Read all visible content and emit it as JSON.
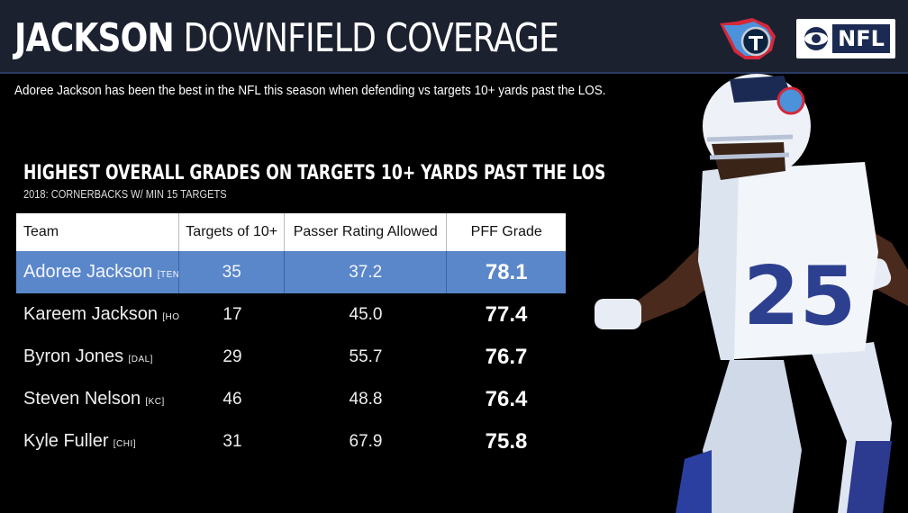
{
  "header": {
    "title_bold": "JACKSON",
    "title_light": "DOWNFIELD COVERAGE",
    "network_logo_text": "NFL"
  },
  "subtitle": "Adoree Jackson has been the best in the NFL this season when defending vs targets 10+ yards past the LOS.",
  "table": {
    "title": "HIGHEST OVERALL GRADES ON TARGETS 10+ YARDS PAST THE LOS",
    "subtitle": "2018: CORNERBACKS W/ MIN 15 TARGETS",
    "headers": [
      "Team",
      "Targets of 10+",
      "Passer Rating Allowed",
      "PFF Grade"
    ],
    "rows": [
      {
        "name": "Adoree Jackson",
        "team": "[TEN]",
        "targets": "35",
        "rating": "37.2",
        "grade": "78.1",
        "highlight": true
      },
      {
        "name": "Kareem Jackson",
        "team": "[HOU]",
        "targets": "17",
        "rating": "45.0",
        "grade": "77.4"
      },
      {
        "name": "Byron Jones",
        "team": "[DAL]",
        "targets": "29",
        "rating": "55.7",
        "grade": "76.7"
      },
      {
        "name": "Steven Nelson",
        "team": "[KC]",
        "targets": "46",
        "rating": "48.8",
        "grade": "76.4"
      },
      {
        "name": "Kyle Fuller",
        "team": "[CHI]",
        "targets": "31",
        "rating": "67.9",
        "grade": "75.8"
      }
    ]
  },
  "player_jersey_number": "25",
  "colors": {
    "highlight": "#5a87c9",
    "header_bg": "#1c2130",
    "navy": "#1b2a52"
  },
  "icons": [
    "titans-logo-icon",
    "cbs-eye-icon",
    "player-photo"
  ]
}
